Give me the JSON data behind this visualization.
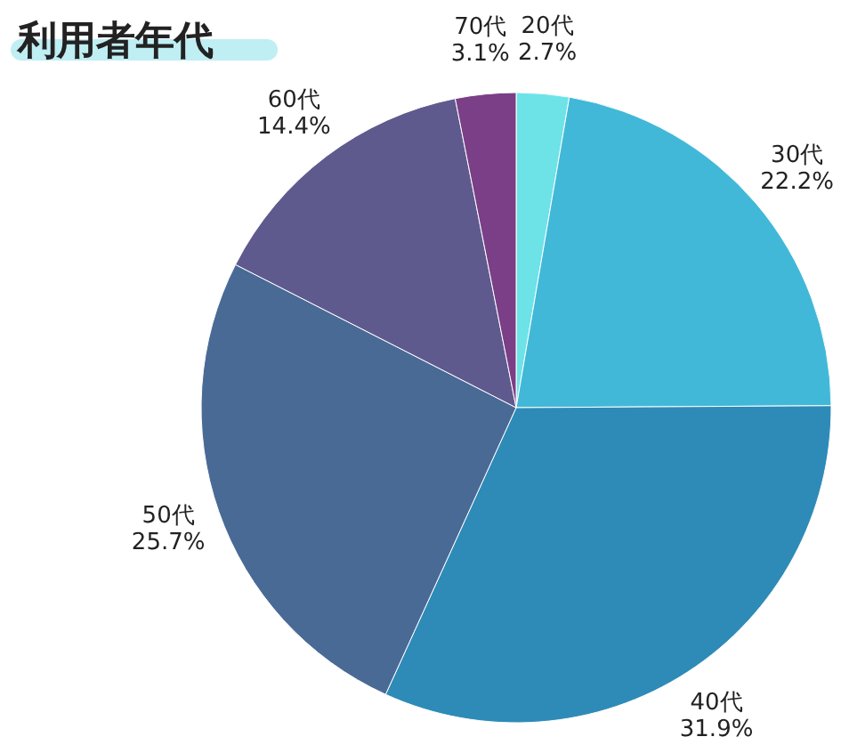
{
  "chart_data": {
    "type": "pie",
    "title": "利用者年代",
    "categories": [
      "20代",
      "30代",
      "40代",
      "50代",
      "60代",
      "70代"
    ],
    "values": [
      2.7,
      22.2,
      31.9,
      25.7,
      14.4,
      3.1
    ],
    "value_labels": [
      "2.7%",
      "22.2%",
      "31.9%",
      "25.7%",
      "14.4%",
      "3.1%"
    ],
    "colors": [
      "#6de3e8",
      "#42b8d8",
      "#2e8bb8",
      "#4a6a96",
      "#5f5a8e",
      "#7a3f86"
    ]
  }
}
